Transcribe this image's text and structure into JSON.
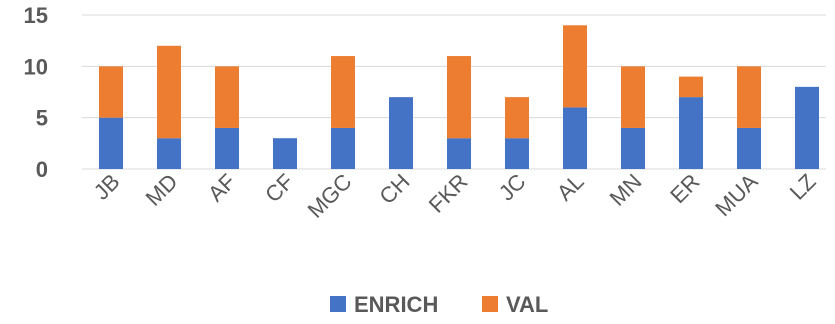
{
  "chart_data": {
    "type": "bar",
    "stacked": true,
    "categories": [
      "JB",
      "MD",
      "AF",
      "CF",
      "MGC",
      "CH",
      "FKR",
      "JC",
      "AL",
      "MN",
      "ER",
      "MUA",
      "LZ"
    ],
    "series": [
      {
        "name": "ENRICH",
        "color": "#4472C4",
        "values": [
          5,
          3,
          4,
          3,
          4,
          7,
          3,
          3,
          6,
          4,
          7,
          4,
          8
        ]
      },
      {
        "name": "VAL",
        "color": "#ED7D31",
        "values": [
          5,
          9,
          6,
          0,
          7,
          0,
          8,
          4,
          8,
          6,
          2,
          6,
          0
        ]
      }
    ],
    "yticks": [
      0,
      5,
      10,
      15
    ],
    "ylim": [
      0,
      15
    ],
    "grid": true,
    "legend_position": "bottom"
  }
}
